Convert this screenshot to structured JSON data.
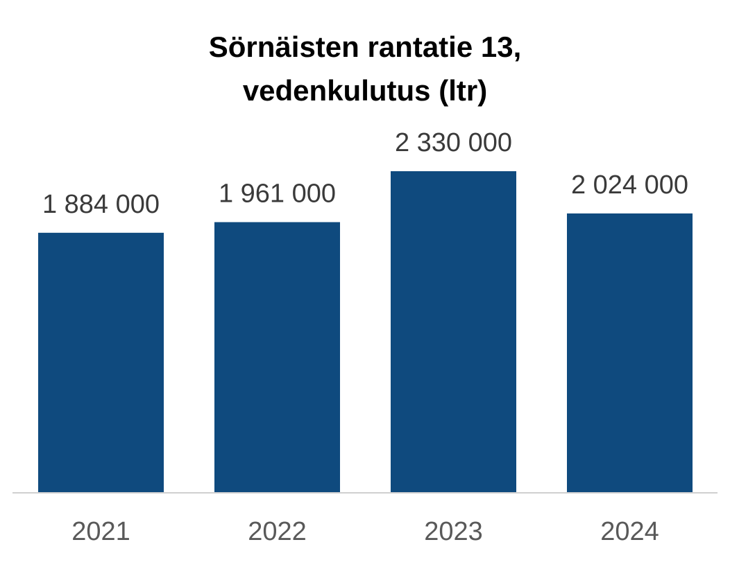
{
  "chart_data": {
    "type": "bar",
    "title_lines": [
      "Sörnäisten rantatie 13,",
      "vedenkulutus (ltr)"
    ],
    "categories": [
      "2021",
      "2022",
      "2023",
      "2024"
    ],
    "values": [
      1884000,
      1961000,
      2330000,
      2024000
    ],
    "data_labels": [
      "1 884 000",
      "1 961 000",
      "2 330 000",
      "2 024 000"
    ],
    "xlabel": "",
    "ylabel": "",
    "ylim": [
      0,
      2330000
    ],
    "grid": false,
    "legend": "none",
    "bar_color": "#0f4a7e",
    "axis_color": "#d0d0d0"
  }
}
